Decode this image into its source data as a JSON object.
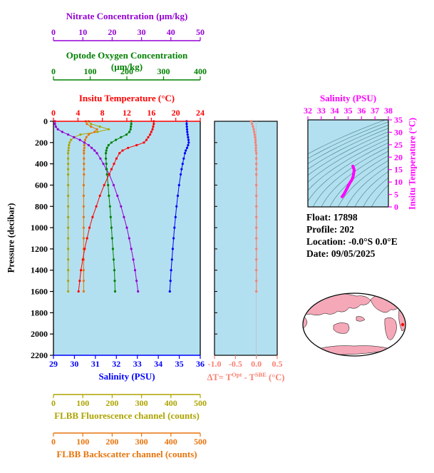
{
  "colors": {
    "plot_bg": "#B3E0F0",
    "contour": "#2E6F6F",
    "map_land": "#F5A8B8",
    "map_ocean": "#FFFFFF",
    "marker": "#FF0000"
  },
  "axes": {
    "nitrate": {
      "label": "Nitrate Concentration (μm/kg)",
      "range": [
        0,
        50
      ],
      "ticks": [
        "0",
        "10",
        "20",
        "30",
        "40",
        "50"
      ],
      "color": "#9400D3"
    },
    "oxygen": {
      "label": "Optode Oxygen Concentration (μm/kg)",
      "range": [
        0,
        400
      ],
      "ticks": [
        "0",
        "100",
        "200",
        "300",
        "400"
      ],
      "color": "#008000"
    },
    "temperature": {
      "label": "Insitu Temperature (°C)",
      "range": [
        0,
        24
      ],
      "ticks": [
        "0",
        "4",
        "8",
        "12",
        "16",
        "20",
        "24"
      ],
      "color": "#FF0000"
    },
    "salinity": {
      "label": "Salinity (PSU)",
      "range": [
        29,
        36
      ],
      "ticks": [
        "29",
        "30",
        "31",
        "32",
        "33",
        "34",
        "35",
        "36"
      ],
      "color": "#0000FF"
    },
    "pressure": {
      "label": "Pressure (decibar)",
      "range": [
        0,
        2200
      ],
      "ticks": [
        "0",
        "200",
        "400",
        "600",
        "800",
        "1000",
        "1200",
        "1400",
        "1600",
        "1800",
        "2000",
        "2200"
      ],
      "color": "#000000"
    },
    "fluorescence": {
      "label": "FLBB Fluorescence channel (counts)",
      "range": [
        0,
        500
      ],
      "ticks": [
        "0",
        "100",
        "200",
        "300",
        "400",
        "500"
      ],
      "color": "#ADA400"
    },
    "backscatter": {
      "label": "FLBB Backscatter channel (counts)",
      "range": [
        0,
        500
      ],
      "ticks": [
        "0",
        "100",
        "200",
        "300",
        "400",
        "500"
      ],
      "color": "#E8740C"
    },
    "delta_t": {
      "label": "ΔT= TOpt - TSBE (°C)",
      "range": [
        -1.0,
        0.5
      ],
      "ticks": [
        "-1.0",
        "-0.5",
        "0.0",
        "0.5"
      ],
      "color": "#FA8072"
    },
    "ts_salinity": {
      "label": "Salinity (PSU)",
      "range": [
        32,
        38
      ],
      "ticks": [
        "32",
        "33",
        "34",
        "35",
        "36",
        "37",
        "38"
      ],
      "color": "#FF00FF"
    },
    "ts_temperature": {
      "label": "Insitu Temperature (°C)",
      "range": [
        0,
        35
      ],
      "ticks": [
        "0",
        "5",
        "10",
        "15",
        "20",
        "25",
        "30",
        "35"
      ],
      "color": "#FF00FF"
    }
  },
  "labels": {
    "delta": {
      "p1": "ΔT= T",
      "sup1": "Opt",
      "p2": " - T",
      "sup2": "SBE",
      "p3": " (°C)"
    }
  },
  "info": {
    "lines": [
      "Float:  17898",
      "Profile:  202",
      "Location:  -0.0°S   0.0°E",
      "Date:  09/05/2025"
    ]
  },
  "chart_data": [
    {
      "type": "line",
      "name": "profile-plot",
      "ylabel": "Pressure (decibar)",
      "ylim": [
        0,
        2200
      ],
      "grid": false,
      "pressure": [
        0,
        25,
        50,
        75,
        100,
        125,
        150,
        175,
        200,
        225,
        250,
        275,
        300,
        350,
        400,
        450,
        500,
        600,
        700,
        800,
        900,
        1000,
        1100,
        1200,
        1300,
        1400,
        1500,
        1600
      ],
      "series": [
        {
          "name": "FLBB Fluorescence channel",
          "axis": "fluorescence",
          "values": [
            120,
            128,
            158,
            188,
            150,
            92,
            70,
            60,
            55,
            53,
            52,
            51,
            50,
            50,
            50,
            50,
            50,
            50,
            50,
            50,
            50,
            50,
            50,
            50,
            50,
            50,
            50,
            50
          ]
        },
        {
          "name": "FLBB Backscatter channel",
          "axis": "backscatter",
          "values": [
            110,
            114,
            128,
            148,
            140,
            120,
            112,
            108,
            106,
            105,
            105,
            104,
            104,
            104,
            104,
            104,
            104,
            103,
            103,
            103,
            103,
            103,
            103,
            103,
            103,
            103,
            103,
            103
          ]
        },
        {
          "name": "Nitrate Concentration",
          "axis": "nitrate",
          "values": [
            0.5,
            0.5,
            0.8,
            1.5,
            3.0,
            5.0,
            7.0,
            9.0,
            10.5,
            12.0,
            13.0,
            14.0,
            14.8,
            16.0,
            17.0,
            18.0,
            19.0,
            20.5,
            21.8,
            23.0,
            24.0,
            25.0,
            25.8,
            26.5,
            27.2,
            27.8,
            28.3,
            28.8
          ]
        },
        {
          "name": "Optode Oxygen Concentration",
          "axis": "oxygen",
          "values": [
            212,
            212,
            211,
            210,
            207,
            199,
            184,
            170,
            158,
            150,
            146,
            144,
            143,
            143,
            144,
            145,
            146,
            149,
            151,
            154,
            156,
            158,
            160,
            162,
            164,
            166,
            167,
            168
          ]
        },
        {
          "name": "Insitu Temperature",
          "axis": "temperature",
          "values": [
            16.4,
            16.4,
            16.3,
            16.2,
            16.0,
            15.8,
            15.5,
            15.2,
            14.8,
            13.6,
            12.2,
            11.3,
            10.8,
            10.3,
            9.9,
            9.5,
            9.1,
            8.3,
            7.6,
            7.0,
            6.4,
            5.9,
            5.5,
            5.1,
            4.8,
            4.5,
            4.3,
            4.1
          ]
        },
        {
          "name": "Salinity",
          "axis": "salinity",
          "values": [
            35.35,
            35.35,
            35.36,
            35.37,
            35.38,
            35.4,
            35.42,
            35.44,
            35.45,
            35.42,
            35.37,
            35.31,
            35.27,
            35.21,
            35.16,
            35.11,
            35.07,
            34.99,
            34.93,
            34.87,
            34.82,
            34.77,
            34.73,
            34.69,
            34.65,
            34.61,
            34.58,
            34.55
          ]
        }
      ]
    },
    {
      "type": "line",
      "name": "delta-t-plot",
      "xlabel": "ΔT= TOpt - TSBE (°C)",
      "xlim": [
        -1.0,
        0.5
      ],
      "xticks": [
        -1.0,
        -0.5,
        0.0,
        0.5
      ],
      "pressure": [
        0,
        25,
        50,
        75,
        100,
        125,
        150,
        175,
        200,
        225,
        250,
        275,
        300,
        350,
        400,
        450,
        500,
        600,
        700,
        800,
        900,
        1000,
        1100,
        1200,
        1300,
        1400,
        1500,
        1600
      ],
      "values": [
        -0.12,
        -0.1,
        -0.08,
        -0.06,
        -0.05,
        -0.04,
        -0.03,
        -0.02,
        -0.02,
        -0.01,
        -0.01,
        -0.01,
        0,
        0,
        0,
        0,
        0,
        0,
        0,
        0,
        0,
        0,
        0,
        0,
        0,
        0,
        0,
        0
      ]
    },
    {
      "type": "line",
      "name": "ts-diagram",
      "xlabel": "Salinity (PSU)",
      "xlim": [
        32,
        38
      ],
      "ylabel": "Insitu Temperature (°C)",
      "ylim": [
        0,
        35
      ],
      "salinity": [
        35.35,
        35.4,
        35.45,
        35.37,
        35.27,
        35.16,
        35.07,
        34.93,
        34.82,
        34.73,
        34.65,
        34.58,
        34.55
      ],
      "temperature": [
        16.4,
        15.8,
        14.8,
        12.2,
        10.8,
        9.9,
        9.1,
        7.6,
        6.4,
        5.5,
        4.8,
        4.3,
        4.1
      ]
    }
  ]
}
